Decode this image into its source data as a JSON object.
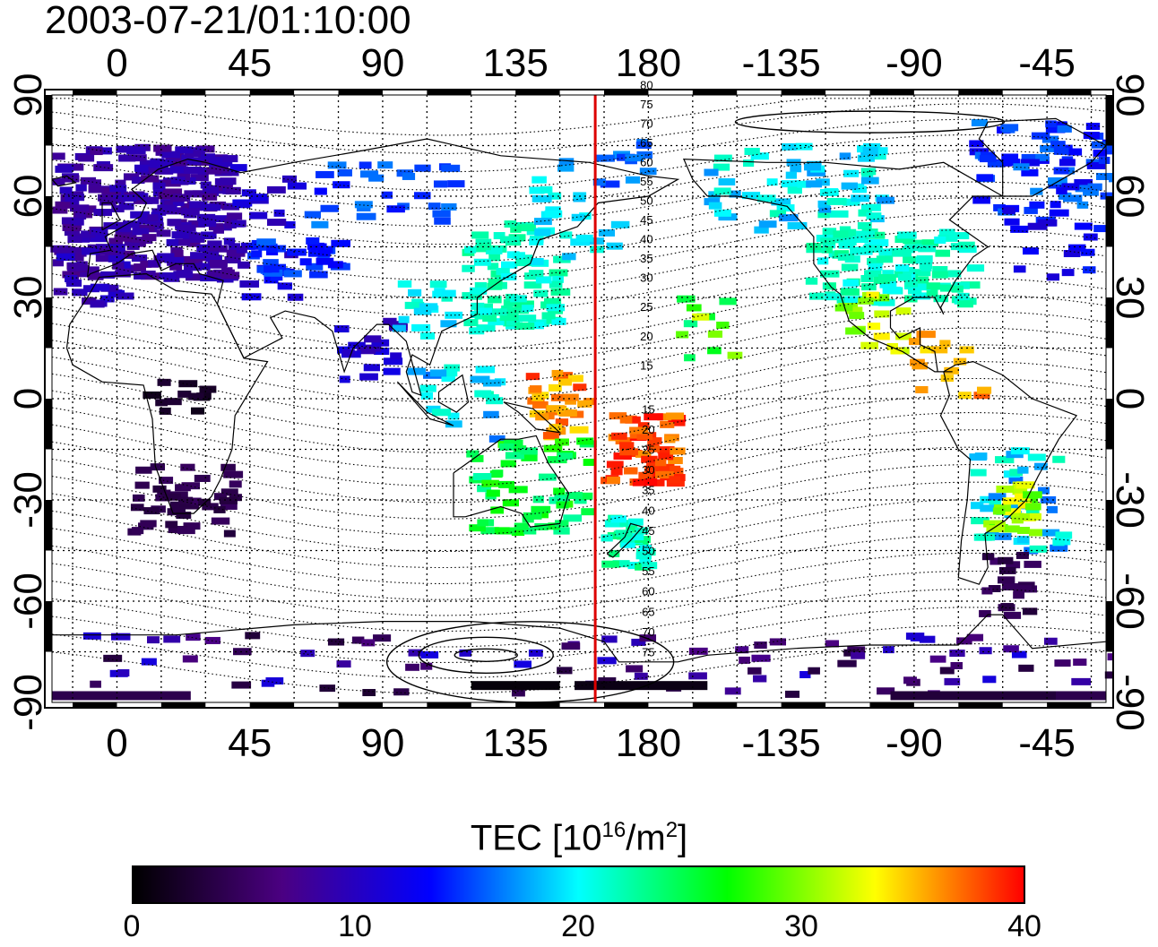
{
  "title": "2003-07-21/01:10:00",
  "map": {
    "top_lon_labels": [
      "0",
      "45",
      "90",
      "135",
      "180",
      "-135",
      "-90",
      "-45"
    ],
    "bottom_lon_labels": [
      "0",
      "45",
      "90",
      "135",
      "180",
      "-135",
      "-90",
      "-45"
    ],
    "lat_labels": [
      "90",
      "60",
      "30",
      "0",
      "-30",
      "-60",
      "-90"
    ],
    "contour_labels": [
      "80",
      "75",
      "70",
      "65",
      "60",
      "55",
      "50",
      "45",
      "40",
      "35",
      "30",
      "25",
      "20",
      "15",
      "15",
      "20",
      "25",
      "30",
      "35",
      "40",
      "45",
      "50",
      "55",
      "60",
      "65",
      "70",
      "75"
    ],
    "red_meridian_lon": 162,
    "line_color": "#dd0000"
  },
  "colorbar": {
    "title_main": "TEC  [10",
    "title_sup1": "16",
    "title_mid": "/m",
    "title_sup2": "2",
    "title_end": "]",
    "ticks": [
      "0",
      "10",
      "20",
      "30",
      "40"
    ],
    "min": 0,
    "max": 40,
    "colors": [
      "#000000",
      "#4b0082",
      "#0000ff",
      "#00ffff",
      "#00ff00",
      "#ffff00",
      "#ff0000"
    ]
  }
}
